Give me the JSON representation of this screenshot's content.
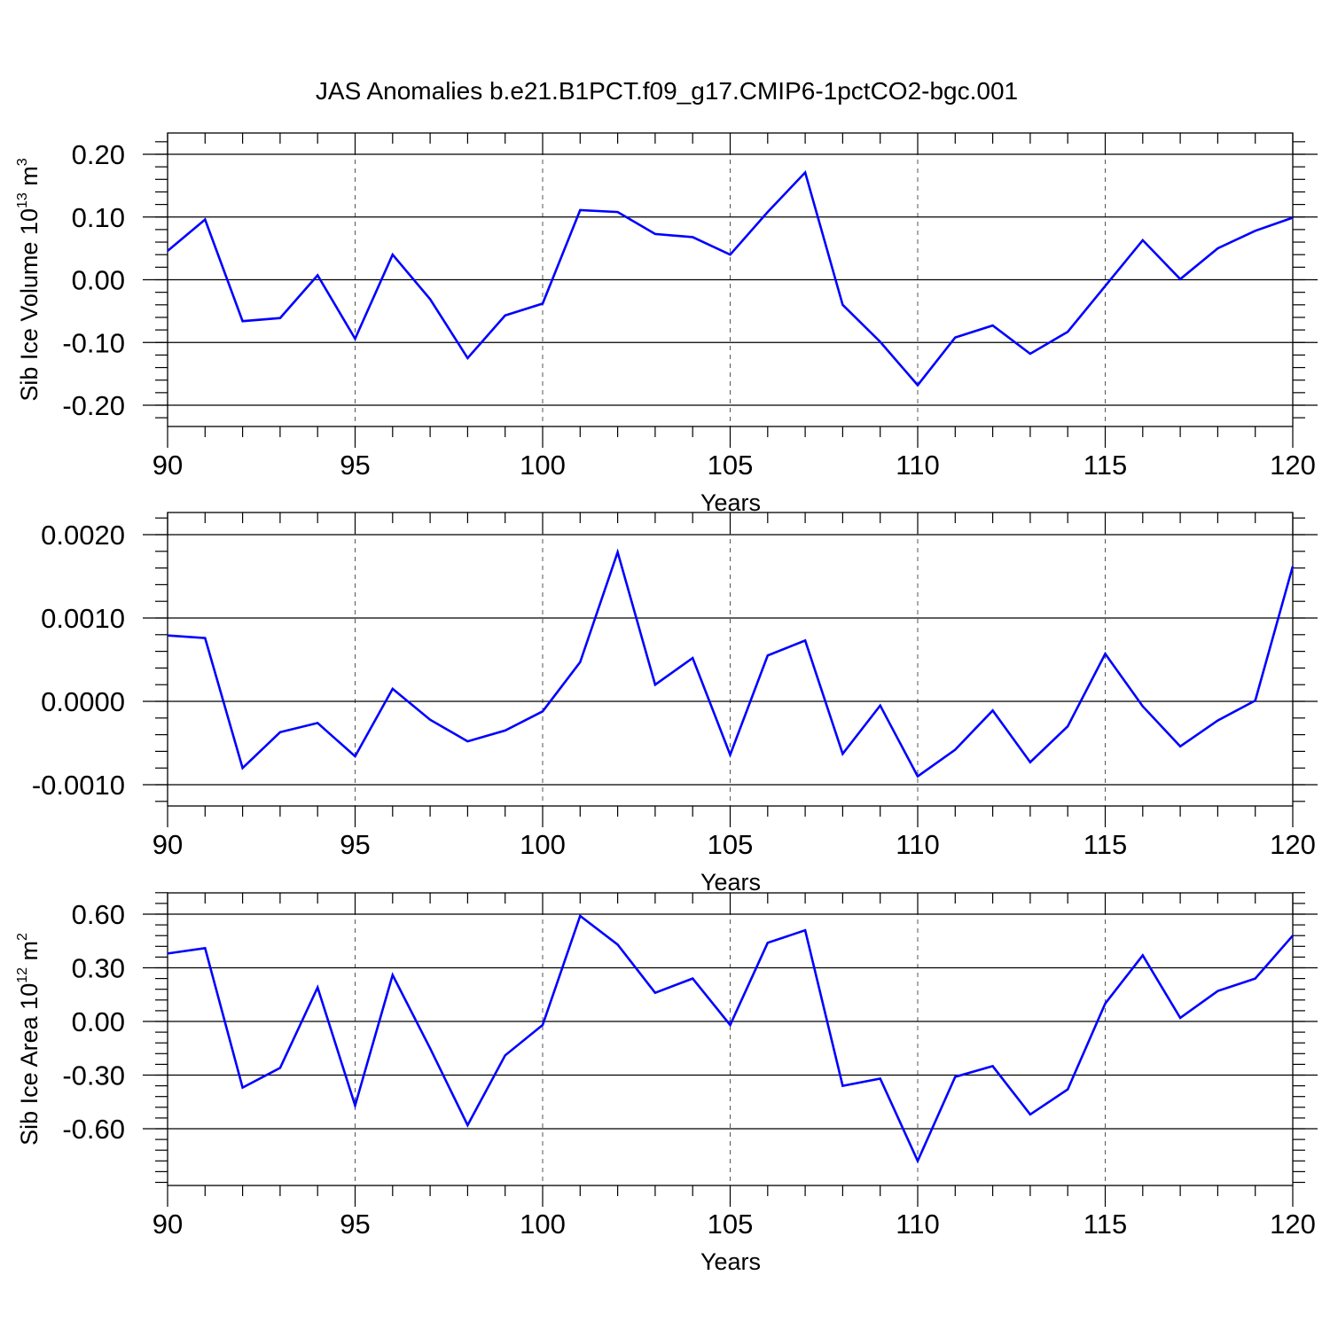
{
  "chart_data": [
    {
      "type": "line",
      "title": "JAS Anomalies b.e21.B1PCT.f09_g17.CMIP6-1pctCO2-bgc.001",
      "xlabel": "Years",
      "ylabel": "Sib Ice Volume",
      "yunit_base": "10",
      "yunit_exp": "13",
      "yunit_tail": "m",
      "yunit_tail_exp": "3",
      "xlim": [
        90,
        120
      ],
      "ylim": [
        -0.2,
        0.2
      ],
      "xticks": [
        "90",
        "95",
        "100",
        "105",
        "110",
        "115",
        "120"
      ],
      "yticks": [
        -0.2,
        -0.1,
        0.0,
        0.1,
        0.2
      ],
      "ytick_labels": [
        "-0.20",
        "-0.10",
        "0.00",
        "0.10",
        "0.20"
      ],
      "x": [
        90,
        91,
        92,
        93,
        94,
        95,
        96,
        97,
        98,
        99,
        100,
        101,
        102,
        103,
        104,
        105,
        106,
        107,
        108,
        109,
        110,
        111,
        112,
        113,
        114,
        115,
        116,
        117,
        118,
        119,
        120
      ],
      "series": [
        {
          "color": "#0000ff",
          "values": [
            0.046,
            0.096,
            -0.066,
            -0.061,
            0.007,
            -0.094,
            0.04,
            -0.031,
            -0.125,
            -0.057,
            -0.038,
            0.111,
            0.108,
            0.073,
            0.068,
            0.04,
            0.108,
            0.171,
            -0.04,
            -0.099,
            -0.168,
            -0.092,
            -0.073,
            -0.118,
            -0.083,
            -0.01,
            0.063,
            0.001,
            0.05,
            0.078,
            0.099
          ]
        }
      ],
      "grid": "x-dashed"
    },
    {
      "type": "line",
      "xlabel": "Years",
      "xlim": [
        90,
        120
      ],
      "ylim": [
        -0.001,
        0.002
      ],
      "xticks": [
        "90",
        "95",
        "100",
        "105",
        "110",
        "115",
        "120"
      ],
      "yticks": [
        -0.001,
        0.0,
        0.001,
        0.002
      ],
      "ytick_labels": [
        "-0.0010",
        "0.0000",
        "0.0010",
        "0.0020"
      ],
      "x": [
        90,
        91,
        92,
        93,
        94,
        95,
        96,
        97,
        98,
        99,
        100,
        101,
        102,
        103,
        104,
        105,
        106,
        107,
        108,
        109,
        110,
        111,
        112,
        113,
        114,
        115,
        116,
        117,
        118,
        119,
        120
      ],
      "series": [
        {
          "color": "#0000ff",
          "values": [
            0.00079,
            0.00076,
            -0.0008,
            -0.00037,
            -0.00026,
            -0.00066,
            0.00015,
            -0.00022,
            -0.00048,
            -0.00035,
            -0.00012,
            0.00047,
            0.00179,
            0.0002,
            0.00052,
            -0.00064,
            0.00055,
            0.00073,
            -0.00063,
            -5e-05,
            -0.0009,
            -0.00058,
            -0.00011,
            -0.00073,
            -0.0003,
            0.00057,
            -6e-05,
            -0.00054,
            -0.00023,
            1e-05,
            0.00162
          ]
        }
      ],
      "grid": "x-dashed"
    },
    {
      "type": "line",
      "xlabel": "Years",
      "ylabel": "Sib Ice Area",
      "yunit_base": "10",
      "yunit_exp": "12",
      "yunit_tail": "m",
      "yunit_tail_exp": "2",
      "xlim": [
        90,
        120
      ],
      "ylim": [
        -0.8,
        0.6
      ],
      "xticks": [
        "90",
        "95",
        "100",
        "105",
        "110",
        "115",
        "120"
      ],
      "yticks": [
        -0.6,
        -0.3,
        0.0,
        0.3,
        0.6
      ],
      "ytick_labels": [
        "-0.60",
        "-0.30",
        "0.00",
        "0.30",
        "0.60"
      ],
      "x": [
        90,
        91,
        92,
        93,
        94,
        95,
        96,
        97,
        98,
        99,
        100,
        101,
        102,
        103,
        104,
        105,
        106,
        107,
        108,
        109,
        110,
        111,
        112,
        113,
        114,
        115,
        116,
        117,
        118,
        119,
        120
      ],
      "series": [
        {
          "color": "#0000ff",
          "values": [
            0.38,
            0.41,
            -0.37,
            -0.26,
            0.19,
            -0.47,
            0.26,
            -0.15,
            -0.58,
            -0.19,
            -0.02,
            0.59,
            0.43,
            0.16,
            0.24,
            -0.02,
            0.44,
            0.51,
            -0.36,
            -0.32,
            -0.78,
            -0.31,
            -0.25,
            -0.52,
            -0.38,
            0.1,
            0.37,
            0.02,
            0.17,
            0.24,
            0.48
          ]
        }
      ],
      "grid": "x-dashed"
    }
  ]
}
